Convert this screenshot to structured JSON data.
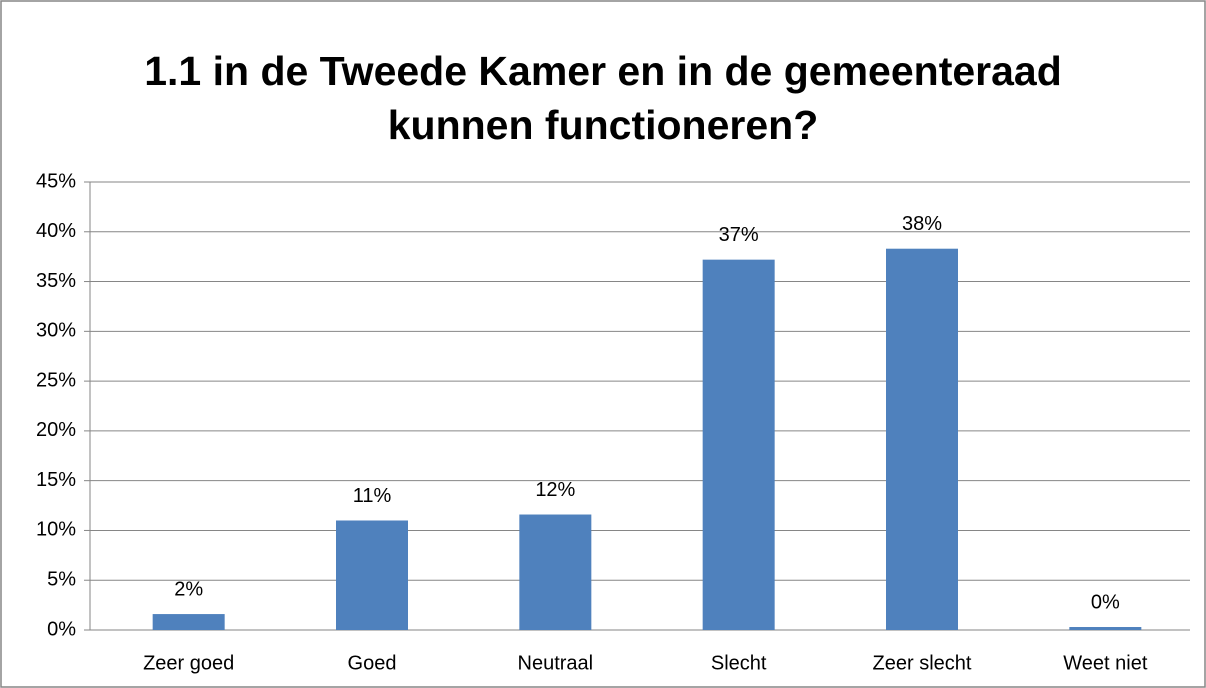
{
  "chart_data": {
    "type": "bar",
    "title": "1.1 in de Tweede Kamer en in de gemeenteraad kunnen functioneren?",
    "categories": [
      "Zeer goed",
      "Goed",
      "Neutraal",
      "Slecht",
      "Zeer slecht",
      "Weet niet"
    ],
    "values": [
      1.6,
      11.0,
      11.6,
      37.2,
      38.3,
      0.3
    ],
    "value_labels": [
      "2%",
      "11%",
      "12%",
      "37%",
      "38%",
      "0%"
    ],
    "color": "#4f81bd",
    "ylim": [
      0,
      45
    ],
    "yticks": [
      {
        "value": 0,
        "label": "0%"
      },
      {
        "value": 5,
        "label": "5%"
      },
      {
        "value": 10,
        "label": "10%"
      },
      {
        "value": 15,
        "label": "15%"
      },
      {
        "value": 20,
        "label": "20%"
      },
      {
        "value": 25,
        "label": "25%"
      },
      {
        "value": 30,
        "label": "30%"
      },
      {
        "value": 35,
        "label": "35%"
      },
      {
        "value": 40,
        "label": "40%"
      },
      {
        "value": 45,
        "label": "45%"
      }
    ],
    "grid": true
  }
}
